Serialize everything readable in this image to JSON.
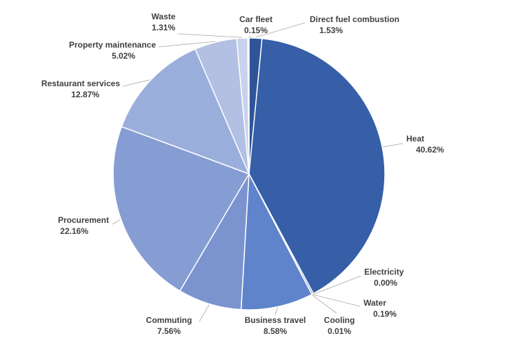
{
  "chart_data": {
    "type": "pie",
    "title": "",
    "slices": [
      {
        "label": "Direct fuel combustion",
        "value": 1.53,
        "display": "1.53%",
        "color": "#2f5597"
      },
      {
        "label": "Heat",
        "value": 40.62,
        "display": "40.62%",
        "color": "#365fa8"
      },
      {
        "label": "Electricity",
        "value": 0.0,
        "display": "0.00%",
        "color": "#4a6fc0"
      },
      {
        "label": "Water",
        "value": 0.19,
        "display": "0.19%",
        "color": "#4f76c6"
      },
      {
        "label": "Cooling",
        "value": 0.01,
        "display": "0.01%",
        "color": "#5a7fcc"
      },
      {
        "label": "Business travel",
        "value": 8.58,
        "display": "8.58%",
        "color": "#5f84cb"
      },
      {
        "label": "Commuting",
        "value": 7.56,
        "display": "7.56%",
        "color": "#7b94cf"
      },
      {
        "label": "Procurement",
        "value": 22.16,
        "display": "22.16%",
        "color": "#869dd3"
      },
      {
        "label": "Restaurant services",
        "value": 12.87,
        "display": "12.87%",
        "color": "#9aaedb"
      },
      {
        "label": "Property maintenance",
        "value": 5.02,
        "display": "5.02%",
        "color": "#b3c0e3"
      },
      {
        "label": "Waste",
        "value": 1.31,
        "display": "1.31%",
        "color": "#c9d2ec"
      },
      {
        "label": "Car fleet",
        "value": 0.15,
        "display": "0.15%",
        "color": "#dfe5f4"
      }
    ],
    "data_labels": "outside-with-leader-lines",
    "legend": "none"
  }
}
